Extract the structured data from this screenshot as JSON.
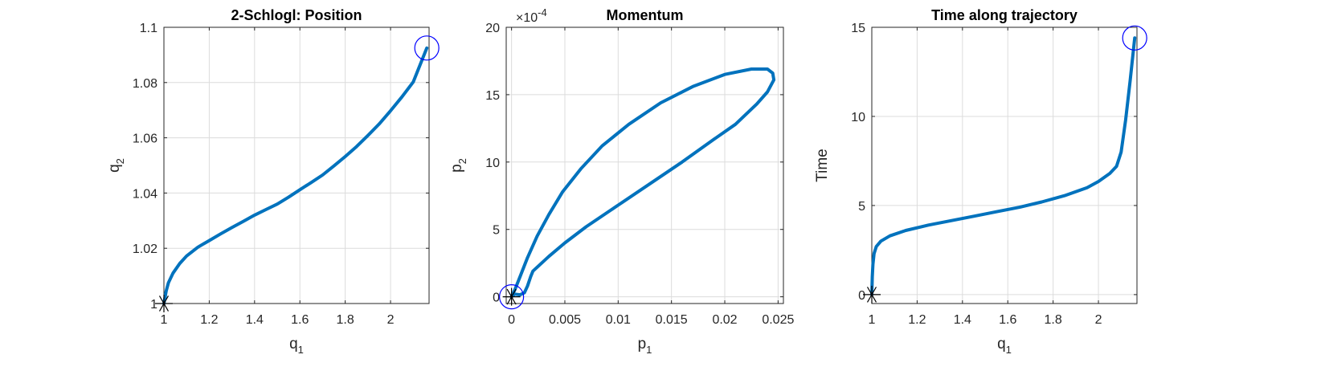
{
  "colors": {
    "line": "#0072bd",
    "marker": "#0000ff",
    "axis": "#262626",
    "grid": "#dcdcdc"
  },
  "chart_data": [
    {
      "type": "line",
      "title": "2-Schlogl: Position",
      "xlabel": {
        "main": "q",
        "sub": "1"
      },
      "ylabel": {
        "main": "q",
        "sub": "2"
      },
      "xlim": [
        1.0,
        2.17
      ],
      "ylim": [
        1.0,
        1.1
      ],
      "xticks": [
        1,
        1.2,
        1.4,
        1.6,
        1.8,
        2
      ],
      "xtick_labels": [
        "1",
        "1.2",
        "1.4",
        "1.6",
        "1.8",
        "2"
      ],
      "yticks": [
        1,
        1.02,
        1.04,
        1.06,
        1.08,
        1.1
      ],
      "ytick_labels": [
        "1",
        "1.02",
        "1.04",
        "1.06",
        "1.08",
        "1.1"
      ],
      "grid": true,
      "series": [
        {
          "x": [
            1.0,
            1.01,
            1.02,
            1.04,
            1.07,
            1.1,
            1.15,
            1.2,
            1.25,
            1.3,
            1.35,
            1.4,
            1.45,
            1.5,
            1.55,
            1.6,
            1.65,
            1.7,
            1.75,
            1.8,
            1.85,
            1.9,
            1.95,
            2.0,
            2.05,
            2.1,
            2.16
          ],
          "y": [
            1.0,
            1.0045,
            1.0075,
            1.011,
            1.0145,
            1.0172,
            1.0204,
            1.0228,
            1.0252,
            1.0275,
            1.0297,
            1.032,
            1.034,
            1.036,
            1.0385,
            1.0412,
            1.0438,
            1.0465,
            1.0498,
            1.0532,
            1.0568,
            1.0608,
            1.065,
            1.0698,
            1.0748,
            1.0802,
            1.0925
          ]
        }
      ],
      "start_marker": {
        "shape": "asterisk",
        "x": 1.0,
        "y": 1.0
      },
      "end_marker": {
        "shape": "circle",
        "x": 2.16,
        "y": 1.0925
      }
    },
    {
      "type": "line",
      "title": "Momentum",
      "xlabel": {
        "main": "p",
        "sub": "1"
      },
      "ylabel": {
        "main": "p",
        "sub": "2"
      },
      "y_exponent": {
        "base": "×10",
        "power": "-4"
      },
      "xlim": [
        -0.0005,
        0.0255
      ],
      "ylim": [
        -0.5,
        20
      ],
      "xticks": [
        0,
        0.005,
        0.01,
        0.015,
        0.02,
        0.025
      ],
      "xtick_labels": [
        "0",
        "0.005",
        "0.01",
        "0.015",
        "0.02",
        "0.025"
      ],
      "yticks": [
        0,
        5,
        10,
        15,
        20
      ],
      "ytick_labels": [
        "0",
        "5",
        "10",
        "15",
        "20"
      ],
      "grid": true,
      "series": [
        {
          "x": [
            0.0,
            0.0003,
            0.0008,
            0.0012,
            0.0015,
            0.0018,
            0.002,
            0.0035,
            0.005,
            0.007,
            0.01,
            0.013,
            0.016,
            0.019,
            0.021,
            0.023,
            0.024,
            0.0246,
            0.0245,
            0.024,
            0.0225,
            0.02,
            0.017,
            0.014,
            0.011,
            0.0085,
            0.0065,
            0.0048,
            0.0035,
            0.0024,
            0.0015,
            0.0008,
            0.0003,
            0.0
          ],
          "y": [
            0.0,
            0.2,
            0.15,
            0.3,
            0.8,
            1.5,
            1.9,
            3.0,
            4.0,
            5.2,
            6.8,
            8.4,
            10.0,
            11.7,
            12.8,
            14.3,
            15.2,
            16.1,
            16.6,
            16.9,
            16.9,
            16.5,
            15.6,
            14.4,
            12.8,
            11.2,
            9.5,
            7.8,
            6.1,
            4.5,
            2.9,
            1.5,
            0.5,
            0.0
          ]
        }
      ],
      "start_marker": {
        "shape": "asterisk",
        "x": 0.0,
        "y": 0.0
      },
      "end_marker": {
        "shape": "circle",
        "x": 0.0,
        "y": 0.0
      }
    },
    {
      "type": "line",
      "title": "Time along trajectory",
      "xlabel": {
        "main": "q",
        "sub": "1"
      },
      "ylabel": {
        "main": "Time",
        "sub": ""
      },
      "xlim": [
        1.0,
        2.17
      ],
      "ylim": [
        -0.5,
        15
      ],
      "xticks": [
        1,
        1.2,
        1.4,
        1.6,
        1.8,
        2
      ],
      "xtick_labels": [
        "1",
        "1.2",
        "1.4",
        "1.6",
        "1.8",
        "2"
      ],
      "yticks": [
        0,
        5,
        10,
        15
      ],
      "ytick_labels": [
        "0",
        "5",
        "10",
        "15"
      ],
      "grid": true,
      "series": [
        {
          "x": [
            1.0,
            1.002,
            1.005,
            1.01,
            1.02,
            1.04,
            1.08,
            1.15,
            1.25,
            1.35,
            1.45,
            1.55,
            1.65,
            1.75,
            1.85,
            1.95,
            2.0,
            2.05,
            2.08,
            2.1,
            2.12,
            2.14,
            2.16
          ],
          "y": [
            0.0,
            1.0,
            1.7,
            2.3,
            2.7,
            3.0,
            3.3,
            3.6,
            3.9,
            4.15,
            4.4,
            4.65,
            4.9,
            5.2,
            5.55,
            6.0,
            6.35,
            6.8,
            7.2,
            8.0,
            9.8,
            12.0,
            14.4
          ]
        }
      ],
      "start_marker": {
        "shape": "asterisk",
        "x": 1.0,
        "y": 0.0
      },
      "end_marker": {
        "shape": "circle",
        "x": 2.16,
        "y": 14.4
      }
    }
  ]
}
